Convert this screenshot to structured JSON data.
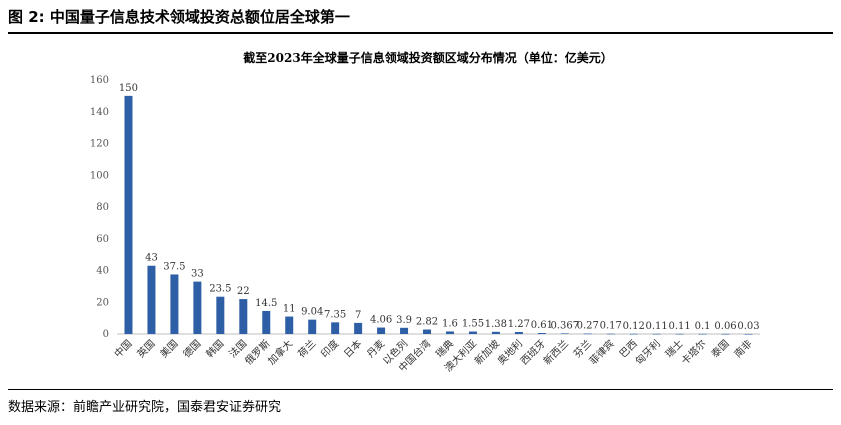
{
  "figure": {
    "title": "图 2:  中国量子信息技术领域投资总额位居全球第一",
    "source": "数据来源：前瞻产业研究院，国泰君安证券研究"
  },
  "chart_data": {
    "type": "bar",
    "title": "截至2023年全球量子信息领域投资额区域分布情况（单位：亿美元）",
    "xlabel": "",
    "ylabel": "",
    "ylim": [
      0,
      160
    ],
    "yticks": [
      0,
      20,
      40,
      60,
      80,
      100,
      120,
      140,
      160
    ],
    "grid": false,
    "legend": "none",
    "bar_color": "#2e5fa6",
    "categories": [
      "中国",
      "英国",
      "美国",
      "德国",
      "韩国",
      "法国",
      "俄罗斯",
      "加拿大",
      "荷兰",
      "印度",
      "日本",
      "丹麦",
      "以色列",
      "中国台湾",
      "瑞典",
      "澳大利亚",
      "新加坡",
      "奥地利",
      "西班牙",
      "新西兰",
      "芬兰",
      "菲律宾",
      "巴西",
      "匈牙利",
      "瑞士",
      "卡塔尔",
      "泰国",
      "南非"
    ],
    "values": [
      150,
      43,
      37.5,
      33,
      23.5,
      22,
      14.5,
      11,
      9.04,
      7.35,
      7,
      4.06,
      3.9,
      2.82,
      1.6,
      1.55,
      1.38,
      1.27,
      0.61,
      0.367,
      0.27,
      0.17,
      0.12,
      0.11,
      0.11,
      0.1,
      0.06,
      0.03
    ],
    "value_labels": [
      "150",
      "43",
      "37.5",
      "33",
      "23.5",
      "22",
      "14.5",
      "11",
      "9.04",
      "7.35",
      "7",
      "4.06",
      "3.9",
      "2.82",
      "1.6",
      "1.55",
      "1.38",
      "1.27",
      "0.61",
      "0.367",
      "0.27",
      "0.17",
      "0.12",
      "0.11",
      "0.11",
      "0.1",
      "0.06",
      "0.03"
    ]
  }
}
